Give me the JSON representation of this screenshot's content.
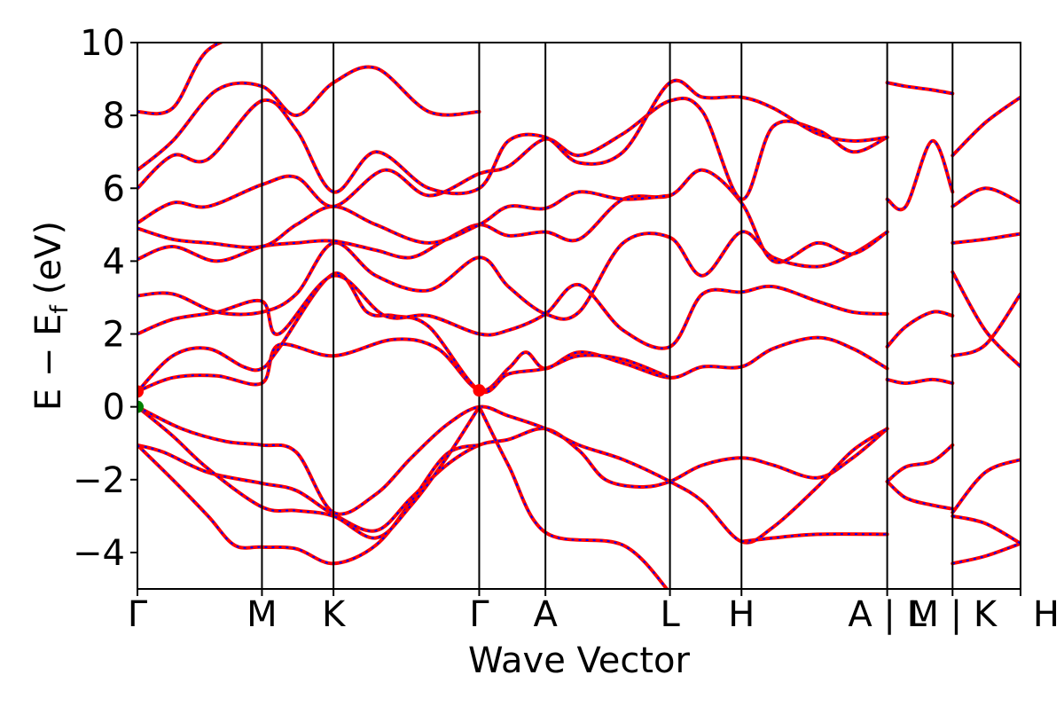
{
  "chart_data": {
    "type": "line",
    "title": "",
    "xlabel": "Wave Vector",
    "ylabel": "E − E",
    "ylabel_sub": "f",
    "ylabel_unit": "(eV)",
    "ylim": [
      -5,
      10
    ],
    "yticks": [
      -4,
      -2,
      0,
      2,
      4,
      6,
      8,
      10
    ],
    "ytick_labels": [
      "−4",
      "−2",
      "0",
      "2",
      "4",
      "6",
      "8",
      "10"
    ],
    "kpath": [
      {
        "label": "Γ",
        "x": 0.0
      },
      {
        "label": "M",
        "x": 0.141
      },
      {
        "label": "K",
        "x": 0.222
      },
      {
        "label": "Γ",
        "x": 0.387
      },
      {
        "label": "A",
        "x": 0.462
      },
      {
        "label": "L",
        "x": 0.603
      },
      {
        "label": "H",
        "x": 0.684
      },
      {
        "label": "A",
        "x": 0.849
      },
      {
        "label": "L",
        "x": 0.849
      },
      {
        "label": "M",
        "x": 0.923
      },
      {
        "label": "K",
        "x": 0.923
      },
      {
        "label": "H",
        "x": 1.0
      }
    ],
    "xtick_labels": [
      "Γ",
      "M",
      "K",
      "Γ",
      "A",
      "L",
      "H",
      "A | L",
      "M | K",
      "H"
    ],
    "segment_breaks": [
      0.849,
      0.923
    ],
    "series_colors": {
      "dft": "#ff0000",
      "wannier": "#0000ff"
    },
    "markers": [
      {
        "x": 0.0,
        "y": 0.0,
        "color": "#008000",
        "label": "VBM"
      },
      {
        "x": 0.0,
        "y": 0.42,
        "color": "#ff0000",
        "label": "CBM"
      },
      {
        "x": 0.387,
        "y": 0.45,
        "color": "#ff0000",
        "label": "CBM"
      }
    ],
    "bands": [
      [
        [
          0,
          -1.05
        ],
        [
          0.03,
          -1.25
        ],
        [
          0.08,
          -1.8
        ],
        [
          0.141,
          -2.1
        ],
        [
          0.18,
          -2.3
        ],
        [
          0.222,
          -2.95
        ],
        [
          0.27,
          -3.4
        ],
        [
          0.31,
          -2.5
        ],
        [
          0.35,
          -1.6
        ],
        [
          0.387,
          -1.05
        ],
        [
          0.42,
          -0.9
        ],
        [
          0.462,
          -0.6
        ],
        [
          0.5,
          -1.2
        ],
        [
          0.53,
          -2.0
        ],
        [
          0.57,
          -2.2
        ],
        [
          0.603,
          -2.05
        ],
        [
          0.64,
          -1.6
        ],
        [
          0.684,
          -1.4
        ],
        [
          0.72,
          -1.6
        ],
        [
          0.77,
          -1.95
        ],
        [
          0.81,
          -1.4
        ],
        [
          0.849,
          -0.6
        ]
      ],
      [
        [
          0,
          -1.05
        ],
        [
          0.04,
          -2.0
        ],
        [
          0.08,
          -3.0
        ],
        [
          0.11,
          -3.8
        ],
        [
          0.141,
          -3.85
        ],
        [
          0.18,
          -3.9
        ],
        [
          0.222,
          -4.3
        ],
        [
          0.27,
          -3.8
        ],
        [
          0.31,
          -2.6
        ],
        [
          0.35,
          -1.3
        ],
        [
          0.387,
          -1.05
        ]
      ],
      [
        [
          0,
          0.0
        ],
        [
          0.04,
          -0.8
        ],
        [
          0.08,
          -1.7
        ],
        [
          0.141,
          -2.75
        ],
        [
          0.18,
          -2.85
        ],
        [
          0.222,
          -3.0
        ],
        [
          0.27,
          -3.6
        ],
        [
          0.31,
          -2.7
        ],
        [
          0.35,
          -1.4
        ],
        [
          0.387,
          0.0
        ]
      ],
      [
        [
          0,
          0.0
        ],
        [
          0.05,
          -0.6
        ],
        [
          0.1,
          -0.95
        ],
        [
          0.141,
          -1.05
        ],
        [
          0.18,
          -1.25
        ],
        [
          0.222,
          -2.9
        ],
        [
          0.27,
          -2.4
        ],
        [
          0.31,
          -1.4
        ],
        [
          0.35,
          -0.5
        ],
        [
          0.387,
          0.0
        ],
        [
          0.42,
          -0.25
        ],
        [
          0.462,
          -0.6
        ],
        [
          0.5,
          -1.05
        ],
        [
          0.55,
          -1.45
        ],
        [
          0.603,
          -2.05
        ],
        [
          0.64,
          -2.6
        ],
        [
          0.684,
          -3.7
        ],
        [
          0.72,
          -3.3
        ],
        [
          0.77,
          -2.2
        ],
        [
          0.81,
          -1.2
        ],
        [
          0.849,
          -0.6
        ]
      ],
      [
        [
          0.387,
          0.0
        ],
        [
          0.42,
          -1.6
        ],
        [
          0.462,
          -3.45
        ],
        [
          0.55,
          -3.8
        ],
        [
          0.603,
          -5.1
        ]
      ],
      [
        [
          0.684,
          -3.7
        ],
        [
          0.72,
          -3.6
        ],
        [
          0.77,
          -3.5
        ],
        [
          0.849,
          -3.5
        ]
      ],
      [
        [
          0,
          0.42
        ],
        [
          0.04,
          0.8
        ],
        [
          0.09,
          0.85
        ],
        [
          0.141,
          0.65
        ],
        [
          0.16,
          1.7
        ],
        [
          0.222,
          1.4
        ],
        [
          0.29,
          1.85
        ],
        [
          0.34,
          1.6
        ],
        [
          0.387,
          0.45
        ],
        [
          0.42,
          1.05
        ],
        [
          0.44,
          1.5
        ],
        [
          0.462,
          1.05
        ],
        [
          0.5,
          1.5
        ],
        [
          0.55,
          1.2
        ],
        [
          0.603,
          0.8
        ],
        [
          0.64,
          1.1
        ],
        [
          0.684,
          1.1
        ],
        [
          0.72,
          1.6
        ],
        [
          0.77,
          1.9
        ],
        [
          0.81,
          1.6
        ],
        [
          0.849,
          1.05
        ]
      ],
      [
        [
          0,
          0.42
        ],
        [
          0.04,
          1.4
        ],
        [
          0.08,
          1.6
        ],
        [
          0.12,
          1.1
        ],
        [
          0.141,
          1.05
        ],
        [
          0.16,
          1.6
        ],
        [
          0.222,
          3.65
        ],
        [
          0.26,
          2.6
        ],
        [
          0.29,
          2.5
        ],
        [
          0.33,
          2.2
        ],
        [
          0.387,
          0.45
        ],
        [
          0.42,
          0.9
        ],
        [
          0.462,
          1.05
        ],
        [
          0.5,
          1.4
        ],
        [
          0.55,
          1.3
        ],
        [
          0.603,
          0.8
        ]
      ],
      [
        [
          0,
          2.0
        ],
        [
          0.04,
          2.4
        ],
        [
          0.09,
          2.6
        ],
        [
          0.141,
          2.9
        ],
        [
          0.16,
          2.0
        ],
        [
          0.222,
          3.6
        ],
        [
          0.28,
          2.5
        ],
        [
          0.33,
          2.5
        ],
        [
          0.387,
          2.0
        ],
        [
          0.42,
          2.1
        ],
        [
          0.462,
          2.55
        ],
        [
          0.5,
          3.35
        ],
        [
          0.55,
          2.1
        ],
        [
          0.603,
          1.65
        ],
        [
          0.64,
          3.1
        ],
        [
          0.684,
          3.15
        ],
        [
          0.72,
          3.3
        ],
        [
          0.77,
          2.9
        ],
        [
          0.81,
          2.6
        ],
        [
          0.849,
          2.55
        ]
      ],
      [
        [
          0,
          3.05
        ],
        [
          0.04,
          3.1
        ],
        [
          0.09,
          2.6
        ],
        [
          0.141,
          2.6
        ],
        [
          0.18,
          3.1
        ],
        [
          0.222,
          4.5
        ],
        [
          0.27,
          3.6
        ],
        [
          0.33,
          3.2
        ],
        [
          0.387,
          4.1
        ],
        [
          0.42,
          3.3
        ],
        [
          0.462,
          2.55
        ],
        [
          0.5,
          2.6
        ],
        [
          0.55,
          4.5
        ],
        [
          0.603,
          4.65
        ],
        [
          0.64,
          3.6
        ],
        [
          0.684,
          4.8
        ],
        [
          0.72,
          4.1
        ],
        [
          0.77,
          3.85
        ],
        [
          0.81,
          4.2
        ],
        [
          0.849,
          4.8
        ]
      ],
      [
        [
          0,
          4.05
        ],
        [
          0.04,
          4.4
        ],
        [
          0.09,
          4.0
        ],
        [
          0.141,
          4.4
        ],
        [
          0.18,
          4.5
        ],
        [
          0.222,
          4.55
        ],
        [
          0.27,
          4.3
        ],
        [
          0.31,
          4.1
        ],
        [
          0.35,
          4.6
        ],
        [
          0.387,
          5.0
        ],
        [
          0.42,
          4.7
        ],
        [
          0.462,
          4.8
        ],
        [
          0.5,
          4.6
        ],
        [
          0.55,
          5.7
        ],
        [
          0.603,
          5.8
        ],
        [
          0.64,
          6.5
        ],
        [
          0.684,
          5.6
        ],
        [
          0.72,
          4.0
        ],
        [
          0.77,
          4.5
        ],
        [
          0.81,
          4.2
        ],
        [
          0.849,
          4.8
        ]
      ],
      [
        [
          0,
          4.9
        ],
        [
          0.04,
          4.6
        ],
        [
          0.08,
          4.5
        ],
        [
          0.141,
          4.4
        ],
        [
          0.18,
          5.0
        ],
        [
          0.222,
          5.5
        ],
        [
          0.27,
          5.0
        ],
        [
          0.33,
          4.5
        ],
        [
          0.387,
          5.0
        ],
        [
          0.42,
          5.5
        ],
        [
          0.462,
          5.45
        ],
        [
          0.5,
          5.9
        ],
        [
          0.55,
          5.7
        ],
        [
          0.603,
          5.8
        ]
      ],
      [
        [
          0,
          5.05
        ],
        [
          0.04,
          5.6
        ],
        [
          0.08,
          5.5
        ],
        [
          0.141,
          6.1
        ],
        [
          0.18,
          6.3
        ],
        [
          0.222,
          5.5
        ],
        [
          0.28,
          6.5
        ],
        [
          0.33,
          5.8
        ],
        [
          0.387,
          6.4
        ],
        [
          0.42,
          6.6
        ],
        [
          0.462,
          7.35
        ],
        [
          0.5,
          6.9
        ],
        [
          0.55,
          7.5
        ],
        [
          0.603,
          8.4
        ],
        [
          0.64,
          8.1
        ],
        [
          0.684,
          5.7
        ],
        [
          0.72,
          7.7
        ],
        [
          0.77,
          7.6
        ],
        [
          0.81,
          7.0
        ],
        [
          0.849,
          7.4
        ]
      ],
      [
        [
          0,
          6.0
        ],
        [
          0.04,
          6.9
        ],
        [
          0.08,
          6.8
        ],
        [
          0.141,
          8.4
        ],
        [
          0.18,
          7.6
        ],
        [
          0.222,
          5.9
        ],
        [
          0.27,
          7.0
        ],
        [
          0.33,
          6.0
        ],
        [
          0.387,
          6.0
        ],
        [
          0.42,
          7.3
        ],
        [
          0.462,
          7.4
        ],
        [
          0.5,
          6.7
        ],
        [
          0.55,
          7.0
        ],
        [
          0.603,
          8.9
        ],
        [
          0.64,
          8.5
        ],
        [
          0.684,
          8.5
        ],
        [
          0.72,
          8.2
        ],
        [
          0.77,
          7.5
        ],
        [
          0.81,
          7.3
        ],
        [
          0.849,
          7.4
        ]
      ],
      [
        [
          0,
          6.5
        ],
        [
          0.04,
          7.3
        ],
        [
          0.09,
          8.7
        ],
        [
          0.141,
          8.8
        ],
        [
          0.18,
          8.0
        ],
        [
          0.222,
          8.9
        ],
        [
          0.27,
          9.3
        ],
        [
          0.33,
          8.1
        ],
        [
          0.387,
          8.1
        ]
      ],
      [
        [
          0,
          8.1
        ],
        [
          0.04,
          8.2
        ],
        [
          0.08,
          9.8
        ],
        [
          0.141,
          10.3
        ]
      ],
      [
        [
          0.849,
          1.65
        ],
        [
          0.87,
          2.2
        ],
        [
          0.9,
          2.6
        ],
        [
          0.923,
          2.5
        ]
      ],
      [
        [
          0.849,
          0.75
        ],
        [
          0.87,
          0.65
        ],
        [
          0.9,
          0.75
        ],
        [
          0.923,
          0.65
        ]
      ],
      [
        [
          0.849,
          -2.05
        ],
        [
          0.87,
          -2.5
        ],
        [
          0.9,
          -2.7
        ],
        [
          0.923,
          -2.8
        ]
      ],
      [
        [
          0.849,
          -2.05
        ],
        [
          0.87,
          -1.65
        ],
        [
          0.9,
          -1.5
        ],
        [
          0.923,
          -1.05
        ]
      ],
      [
        [
          0.849,
          5.7
        ],
        [
          0.87,
          5.5
        ],
        [
          0.9,
          7.3
        ],
        [
          0.923,
          5.9
        ]
      ],
      [
        [
          0.849,
          8.9
        ],
        [
          0.87,
          8.8
        ],
        [
          0.9,
          8.7
        ],
        [
          0.923,
          8.6
        ]
      ],
      [
        [
          0.923,
          -4.3
        ],
        [
          0.96,
          -4.1
        ],
        [
          1.0,
          -3.75
        ]
      ],
      [
        [
          0.923,
          -3.0
        ],
        [
          0.96,
          -3.2
        ],
        [
          1.0,
          -3.75
        ]
      ],
      [
        [
          0.923,
          -2.9
        ],
        [
          0.96,
          -1.8
        ],
        [
          1.0,
          -1.45
        ]
      ],
      [
        [
          0.923,
          1.4
        ],
        [
          0.96,
          1.7
        ],
        [
          1.0,
          3.1
        ]
      ],
      [
        [
          0.923,
          3.7
        ],
        [
          0.96,
          2.1
        ],
        [
          1.0,
          1.1
        ]
      ],
      [
        [
          0.923,
          4.5
        ],
        [
          0.96,
          4.6
        ],
        [
          1.0,
          4.75
        ]
      ],
      [
        [
          0.923,
          5.5
        ],
        [
          0.96,
          6.0
        ],
        [
          1.0,
          5.6
        ]
      ],
      [
        [
          0.923,
          6.9
        ],
        [
          0.96,
          7.8
        ],
        [
          1.0,
          8.5
        ]
      ]
    ]
  }
}
